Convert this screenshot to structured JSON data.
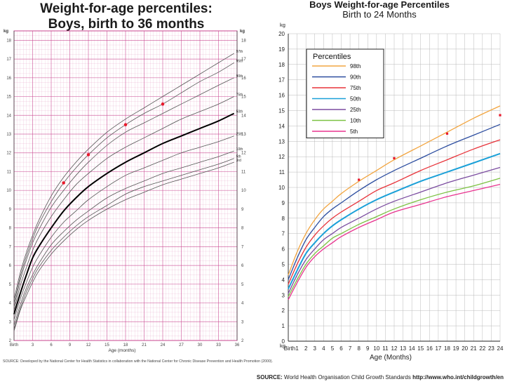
{
  "chart_data": [
    {
      "type": "line",
      "title": "Weight-for-age percentiles:",
      "subtitle": "Boys, birth to 36 months",
      "xlabel": "Age (months)",
      "ylabel": "kg",
      "ylabel_right": "kg",
      "xlim": [
        0,
        36
      ],
      "ylim": [
        2,
        18.5
      ],
      "x_ticks": [
        {
          "v": 0,
          "label": "Birth"
        },
        {
          "v": 3,
          "label": "3"
        },
        {
          "v": 6,
          "label": "6"
        },
        {
          "v": 9,
          "label": "9"
        },
        {
          "v": 12,
          "label": "12"
        },
        {
          "v": 15,
          "label": "15"
        },
        {
          "v": 18,
          "label": "18"
        },
        {
          "v": 21,
          "label": "21"
        },
        {
          "v": 24,
          "label": "24"
        },
        {
          "v": 27,
          "label": "27"
        },
        {
          "v": 30,
          "label": "30"
        },
        {
          "v": 33,
          "label": "33"
        },
        {
          "v": 36,
          "label": "36"
        }
      ],
      "y_ticks": [
        "2",
        "3",
        "4",
        "5",
        "6",
        "7",
        "8",
        "9",
        "10",
        "11",
        "12",
        "13",
        "14",
        "15",
        "16",
        "17",
        "18"
      ],
      "grid": true,
      "x": [
        0,
        1,
        2,
        3,
        4,
        6,
        8,
        10,
        12,
        15,
        18,
        21,
        24,
        27,
        30,
        33,
        35.5
      ],
      "series": [
        {
          "name": "97th",
          "values": [
            4.2,
            5.6,
            6.7,
            7.6,
            8.4,
            9.7,
            10.7,
            11.5,
            12.2,
            13.1,
            13.8,
            14.4,
            15.0,
            15.6,
            16.2,
            16.8,
            17.3
          ]
        },
        {
          "name": "95th",
          "values": [
            4.0,
            5.4,
            6.5,
            7.4,
            8.2,
            9.4,
            10.4,
            11.2,
            11.9,
            12.8,
            13.5,
            14.1,
            14.6,
            15.2,
            15.8,
            16.3,
            16.8
          ]
        },
        {
          "name": "90th",
          "values": [
            3.8,
            5.2,
            6.3,
            7.2,
            7.9,
            9.1,
            10.0,
            10.8,
            11.5,
            12.4,
            13.1,
            13.6,
            14.1,
            14.6,
            15.1,
            15.6,
            16.0
          ]
        },
        {
          "name": "75th",
          "values": [
            3.6,
            4.9,
            5.9,
            6.8,
            7.5,
            8.6,
            9.5,
            10.3,
            10.9,
            11.7,
            12.3,
            12.8,
            13.3,
            13.8,
            14.2,
            14.6,
            15.0
          ]
        },
        {
          "name": "50th",
          "values": [
            3.4,
            4.5,
            5.5,
            6.4,
            7.0,
            8.0,
            8.9,
            9.6,
            10.2,
            10.9,
            11.5,
            12.0,
            12.5,
            12.9,
            13.3,
            13.7,
            14.1
          ]
        },
        {
          "name": "25th",
          "values": [
            3.1,
            4.2,
            5.1,
            5.9,
            6.5,
            7.5,
            8.3,
            8.9,
            9.5,
            10.2,
            10.8,
            11.2,
            11.6,
            12.0,
            12.3,
            12.6,
            12.9
          ]
        },
        {
          "name": "10th",
          "values": [
            2.8,
            3.9,
            4.8,
            5.5,
            6.1,
            7.1,
            7.8,
            8.4,
            8.9,
            9.6,
            10.1,
            10.5,
            10.9,
            11.2,
            11.5,
            11.8,
            12.1
          ]
        },
        {
          "name": "5th",
          "values": [
            2.6,
            3.7,
            4.6,
            5.3,
            5.9,
            6.8,
            7.5,
            8.1,
            8.6,
            9.2,
            9.8,
            10.2,
            10.5,
            10.8,
            11.1,
            11.4,
            11.7
          ]
        },
        {
          "name": "3rd",
          "values": [
            2.5,
            3.6,
            4.4,
            5.1,
            5.7,
            6.6,
            7.3,
            7.9,
            8.4,
            9.0,
            9.5,
            9.9,
            10.3,
            10.6,
            10.9,
            11.2,
            11.5
          ]
        }
      ],
      "points": [
        {
          "x": 8,
          "y": 10.4
        },
        {
          "x": 12,
          "y": 11.9
        },
        {
          "x": 18,
          "y": 13.5
        },
        {
          "x": 24,
          "y": 14.6
        }
      ],
      "source": "SOURCE: Developed by the National Center for Health Statistics in collaboration with the National Center for Chronic Disease Prevention and Health Promotion (2000)."
    },
    {
      "type": "line",
      "title": "Boys Weight-for-age Percentiles",
      "subtitle": "Birth to 24 Months",
      "xlabel": "Age (Months)",
      "ylabel": "kg",
      "ylabel_bottom": "kg",
      "xlim": [
        0,
        24
      ],
      "ylim": [
        0,
        20
      ],
      "x_ticks": [
        {
          "v": 0,
          "label": "Birth"
        },
        {
          "v": 1,
          "label": "1"
        },
        {
          "v": 2,
          "label": "2"
        },
        {
          "v": 3,
          "label": "3"
        },
        {
          "v": 4,
          "label": "4"
        },
        {
          "v": 5,
          "label": "5"
        },
        {
          "v": 6,
          "label": "6"
        },
        {
          "v": 7,
          "label": "7"
        },
        {
          "v": 8,
          "label": "8"
        },
        {
          "v": 9,
          "label": "9"
        },
        {
          "v": 10,
          "label": "10"
        },
        {
          "v": 11,
          "label": "11"
        },
        {
          "v": 12,
          "label": "12"
        },
        {
          "v": 13,
          "label": "13"
        },
        {
          "v": 14,
          "label": "14"
        },
        {
          "v": 15,
          "label": "15"
        },
        {
          "v": 16,
          "label": "16"
        },
        {
          "v": 17,
          "label": "17"
        },
        {
          "v": 18,
          "label": "18"
        },
        {
          "v": 19,
          "label": "19"
        },
        {
          "v": 20,
          "label": "20"
        },
        {
          "v": 21,
          "label": "21"
        },
        {
          "v": 22,
          "label": "22"
        },
        {
          "v": 23,
          "label": "23"
        },
        {
          "v": 24,
          "label": "24"
        }
      ],
      "y_ticks": [
        "0",
        "1",
        "2",
        "3",
        "4",
        "5",
        "6",
        "7",
        "8",
        "9",
        "10",
        "11",
        "12",
        "13",
        "14",
        "15",
        "16",
        "17",
        "18",
        "19",
        "20"
      ],
      "grid": true,
      "legend_title": "Percentiles",
      "legend_position": "top-left",
      "x": [
        0,
        1,
        2,
        3,
        4,
        5,
        6,
        8,
        10,
        12,
        15,
        18,
        21,
        24
      ],
      "series": [
        {
          "name": "98th",
          "color": "#f2a540",
          "values": [
            4.3,
            5.8,
            7.0,
            7.9,
            8.6,
            9.1,
            9.6,
            10.4,
            11.1,
            11.8,
            12.7,
            13.6,
            14.5,
            15.3
          ]
        },
        {
          "name": "90th",
          "color": "#2d4ea0",
          "values": [
            4.0,
            5.4,
            6.6,
            7.4,
            8.1,
            8.6,
            9.0,
            9.8,
            10.5,
            11.1,
            11.9,
            12.7,
            13.4,
            14.1
          ]
        },
        {
          "name": "75th",
          "color": "#e8333a",
          "values": [
            3.7,
            5.0,
            6.1,
            6.9,
            7.5,
            8.0,
            8.4,
            9.1,
            9.8,
            10.3,
            11.1,
            11.8,
            12.5,
            13.1
          ]
        },
        {
          "name": "50th",
          "color": "#1aa0d8",
          "values": [
            3.4,
            4.6,
            5.7,
            6.4,
            7.0,
            7.5,
            7.9,
            8.6,
            9.2,
            9.7,
            10.4,
            11.0,
            11.6,
            12.2
          ]
        },
        {
          "name": "25th",
          "color": "#7b4ca0",
          "values": [
            3.1,
            4.3,
            5.3,
            6.0,
            6.6,
            7.0,
            7.4,
            8.0,
            8.6,
            9.1,
            9.7,
            10.3,
            10.8,
            11.3
          ]
        },
        {
          "name": "10th",
          "color": "#7cc242",
          "values": [
            2.9,
            4.0,
            5.0,
            5.7,
            6.2,
            6.7,
            7.0,
            7.6,
            8.1,
            8.6,
            9.2,
            9.7,
            10.1,
            10.6
          ]
        },
        {
          "name": "5th",
          "color": "#e8338f",
          "values": [
            2.7,
            3.8,
            4.8,
            5.5,
            6.0,
            6.4,
            6.8,
            7.4,
            7.9,
            8.4,
            8.9,
            9.4,
            9.8,
            10.2
          ]
        }
      ],
      "points": [
        {
          "x": 8,
          "y": 10.5
        },
        {
          "x": 12,
          "y": 11.9
        },
        {
          "x": 18,
          "y": 13.5
        },
        {
          "x": 24,
          "y": 14.7
        }
      ],
      "source_label": "SOURCE:",
      "source_text": " World Health Organisation Child Growth Standards ",
      "source_url": "http://www.who.int/childgrowth/en"
    }
  ]
}
